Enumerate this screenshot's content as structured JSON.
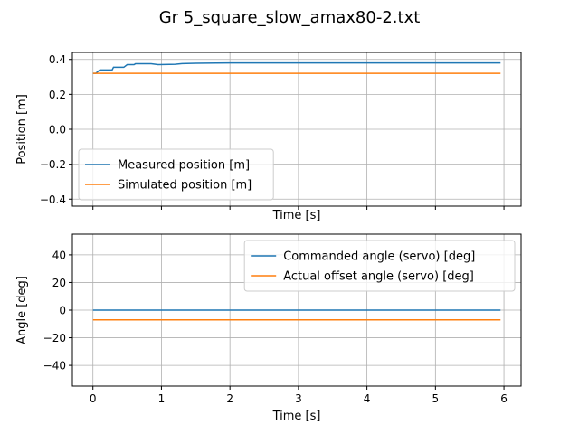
{
  "chart_data": {
    "title": "Gr 5_square_slow_amax80-2.txt",
    "panels": [
      {
        "type": "line",
        "xlabel": "Time [s]",
        "ylabel": "Position [m]",
        "xlim": [
          -0.3,
          6.25
        ],
        "ylim": [
          -0.44,
          0.44
        ],
        "xticks": [
          0,
          1,
          2,
          3,
          4,
          5,
          6
        ],
        "show_xticklabels": false,
        "yticks": [
          -0.4,
          -0.2,
          0.0,
          0.2,
          0.4
        ],
        "ytick_labels": [
          "−0.4",
          "−0.2",
          "0.0",
          "0.2",
          "0.4"
        ],
        "grid": true,
        "legend": "lower-left",
        "series": [
          {
            "name": "Measured position [m]",
            "color": "#1f77b4",
            "x": [
              0,
              0.04,
              0.07,
              0.1,
              0.2,
              0.28,
              0.3,
              0.4,
              0.45,
              0.5,
              0.6,
              0.62,
              0.8,
              0.85,
              0.95,
              1.2,
              1.3,
              1.5,
              1.8,
              2.0,
              3.0,
              4.0,
              5.0,
              5.95
            ],
            "y": [
              0.32,
              0.32,
              0.33,
              0.34,
              0.34,
              0.34,
              0.355,
              0.355,
              0.355,
              0.37,
              0.37,
              0.375,
              0.375,
              0.375,
              0.37,
              0.372,
              0.376,
              0.378,
              0.379,
              0.38,
              0.38,
              0.38,
              0.38,
              0.38
            ]
          },
          {
            "name": "Simulated position [m]",
            "color": "#ff7f0e",
            "x": [
              0,
              5.95
            ],
            "y": [
              0.32,
              0.32
            ]
          }
        ]
      },
      {
        "type": "line",
        "xlabel": "Time [s]",
        "ylabel": "Angle [deg]",
        "xlim": [
          -0.3,
          6.25
        ],
        "ylim": [
          -55,
          55
        ],
        "xticks": [
          0,
          1,
          2,
          3,
          4,
          5,
          6
        ],
        "show_xticklabels": true,
        "xtick_labels": [
          "0",
          "1",
          "2",
          "3",
          "4",
          "5",
          "6"
        ],
        "yticks": [
          -40,
          -20,
          0,
          20,
          40
        ],
        "ytick_labels": [
          "−40",
          "−20",
          "0",
          "20",
          "40"
        ],
        "grid": true,
        "legend": "upper-right",
        "series": [
          {
            "name": "Commanded angle (servo) [deg]",
            "color": "#1f77b4",
            "x": [
              0,
              5.95
            ],
            "y": [
              0,
              0
            ]
          },
          {
            "name": "Actual offset angle (servo) [deg]",
            "color": "#ff7f0e",
            "x": [
              0,
              5.95
            ],
            "y": [
              -7,
              -7
            ]
          }
        ]
      }
    ]
  }
}
